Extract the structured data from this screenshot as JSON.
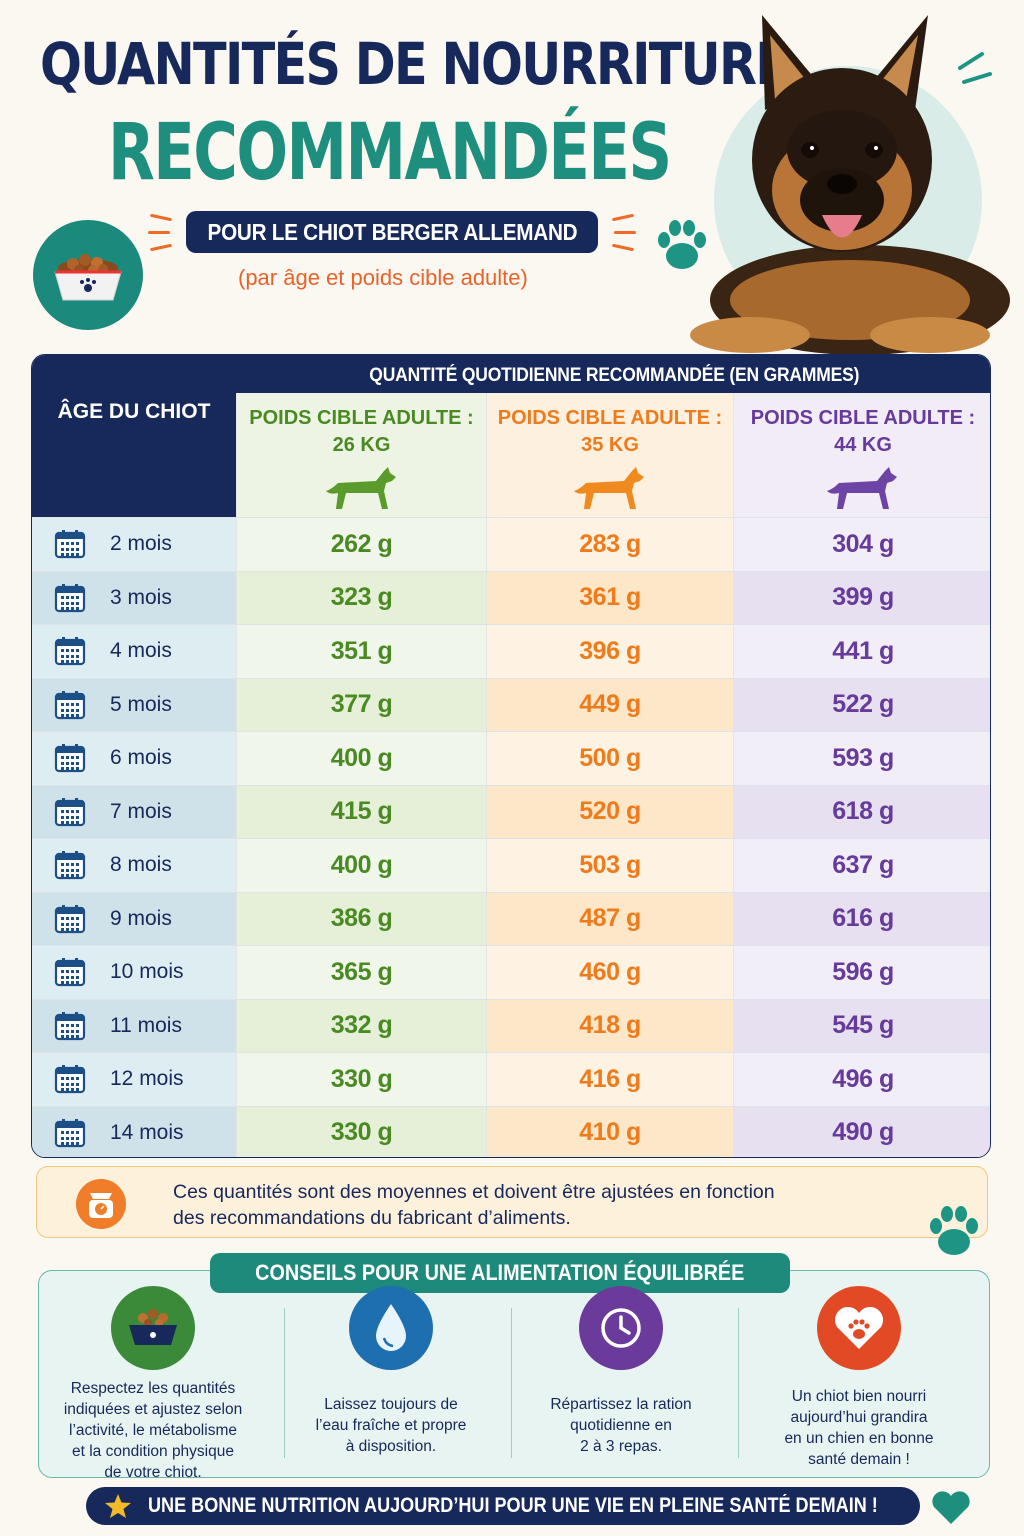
{
  "header": {
    "title_line1": "QUANTITÉS DE NOURRITURE",
    "title_line2": "RECOMMANDÉES",
    "subtitle": "POUR LE CHIOT BERGER ALLEMAND",
    "note": "(par âge et poids cible adulte)"
  },
  "table": {
    "age_header": "ÂGE DU CHIOT",
    "group_header": "QUANTITÉ QUOTIDIENNE RECOMMANDÉE (EN GRAMMES)",
    "columns": [
      {
        "label": "POIDS CIBLE ADULTE :",
        "weight": "26 KG",
        "color": "#4a8a23"
      },
      {
        "label": "POIDS CIBLE ADULTE :",
        "weight": "35 KG",
        "color": "#ee7b1c"
      },
      {
        "label": "POIDS CIBLE ADULTE :",
        "weight": "44 KG",
        "color": "#663b9a"
      }
    ],
    "rows": [
      {
        "age": "2 mois",
        "v26": "262 g",
        "v35": "283 g",
        "v44": "304 g"
      },
      {
        "age": "3 mois",
        "v26": "323 g",
        "v35": "361 g",
        "v44": "399 g"
      },
      {
        "age": "4 mois",
        "v26": "351 g",
        "v35": "396 g",
        "v44": "441 g"
      },
      {
        "age": "5 mois",
        "v26": "377 g",
        "v35": "449 g",
        "v44": "522 g"
      },
      {
        "age": "6 mois",
        "v26": "400 g",
        "v35": "500 g",
        "v44": "593 g"
      },
      {
        "age": "7 mois",
        "v26": "415 g",
        "v35": "520 g",
        "v44": "618 g"
      },
      {
        "age": "8 mois",
        "v26": "400 g",
        "v35": "503 g",
        "v44": "637 g"
      },
      {
        "age": "9 mois",
        "v26": "386 g",
        "v35": "487 g",
        "v44": "616 g"
      },
      {
        "age": "10 mois",
        "v26": "365 g",
        "v35": "460 g",
        "v44": "596 g"
      },
      {
        "age": "11 mois",
        "v26": "332 g",
        "v35": "418 g",
        "v44": "545 g"
      },
      {
        "age": "12 mois",
        "v26": "330 g",
        "v35": "416 g",
        "v44": "496 g"
      },
      {
        "age": "14 mois",
        "v26": "330 g",
        "v35": "410 g",
        "v44": "490 g"
      }
    ]
  },
  "info_note": {
    "line1": "Ces quantités sont des moyennes et doivent être ajustées en fonction",
    "line2": "des recommandations du fabricant d’aliments."
  },
  "tips": {
    "title": "CONSEILS POUR UNE ALIMENTATION ÉQUILIBRÉE",
    "items": [
      {
        "icon": "food-bowl-icon",
        "lines": [
          "Respectez les quantités",
          "indiquées et ajustez selon",
          "l’activité, le métabolisme",
          "et la condition physique",
          "de votre chiot."
        ]
      },
      {
        "icon": "water-drop-icon",
        "lines": [
          "Laissez toujours de",
          "l’eau fraîche et propre",
          "à disposition."
        ]
      },
      {
        "icon": "clock-icon",
        "lines": [
          "Répartissez la ration",
          "quotidienne en",
          "2 à 3 repas."
        ]
      },
      {
        "icon": "heart-paw-icon",
        "lines": [
          "Un chiot bien nourri",
          "aujourd’hui grandira",
          "en un chien en bonne",
          "santé demain !"
        ]
      }
    ]
  },
  "footer": {
    "text": "UNE BONNE NUTRITION AUJOURD’HUI POUR UNE VIE EN PLEINE SANTÉ DEMAIN !"
  },
  "colors": {
    "navy": "#17285a",
    "teal": "#1e8f7e",
    "green": "#4a8a23",
    "orange": "#ee7b1c",
    "purple": "#663b9a"
  }
}
